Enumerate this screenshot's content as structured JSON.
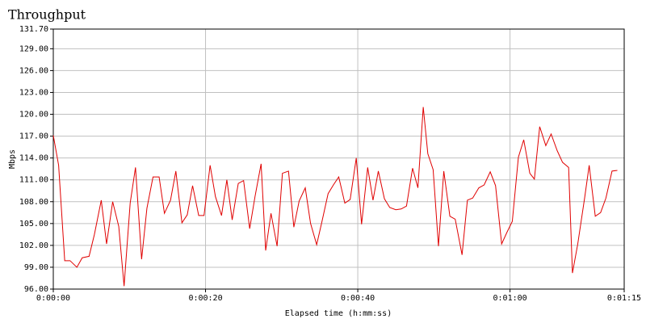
{
  "chart_data": {
    "type": "line",
    "title": "Throughput",
    "x_label": "Elapsed time (h:mm:ss)",
    "y_label": "Mbps",
    "xlim": [
      0,
      75
    ],
    "ylim": [
      96,
      131.7
    ],
    "grid": true,
    "xticks": [
      {
        "value": 0,
        "label": "0:00:00"
      },
      {
        "value": 20,
        "label": "0:00:20"
      },
      {
        "value": 40,
        "label": "0:00:40"
      },
      {
        "value": 60,
        "label": "0:01:00"
      },
      {
        "value": 75,
        "label": "0:01:15"
      }
    ],
    "yticks": [
      {
        "value": 96,
        "label": "96.00"
      },
      {
        "value": 99,
        "label": "99.00"
      },
      {
        "value": 102,
        "label": "102.00"
      },
      {
        "value": 105,
        "label": "105.00"
      },
      {
        "value": 108,
        "label": "108.00"
      },
      {
        "value": 111,
        "label": "111.00"
      },
      {
        "value": 114,
        "label": "114.00"
      },
      {
        "value": 117,
        "label": "117.00"
      },
      {
        "value": 120,
        "label": "120.00"
      },
      {
        "value": 123,
        "label": "123.00"
      },
      {
        "value": 126,
        "label": "126.00"
      },
      {
        "value": 129,
        "label": "129.00"
      },
      {
        "value": 131.7,
        "label": "131.70"
      }
    ],
    "x": [
      0,
      0.7,
      1.5,
      2.2,
      3.1,
      3.8,
      4.7,
      5.4,
      6.3,
      7.0,
      7.8,
      8.6,
      9.3,
      10.1,
      10.8,
      11.6,
      12.3,
      13.1,
      13.9,
      14.6,
      15.4,
      16.1,
      16.9,
      17.6,
      18.3,
      19.1,
      19.8,
      20.6,
      21.3,
      22.1,
      22.8,
      23.5,
      24.3,
      25.0,
      25.8,
      26.5,
      27.3,
      27.9,
      28.6,
      29.4,
      30.1,
      30.9,
      31.6,
      32.3,
      33.1,
      33.8,
      34.6,
      35.3,
      36.1,
      36.8,
      37.5,
      38.3,
      39.0,
      39.8,
      40.5,
      41.3,
      42.0,
      42.7,
      43.5,
      44.2,
      45.0,
      45.7,
      46.4,
      47.2,
      47.9,
      48.6,
      49.2,
      49.9,
      50.6,
      51.3,
      52.1,
      52.8,
      53.7,
      54.4,
      55.1,
      55.9,
      56.6,
      57.4,
      58.1,
      58.9,
      59.6,
      60.3,
      61.1,
      61.8,
      62.6,
      63.2,
      63.9,
      64.7,
      65.4,
      66.2,
      66.9,
      67.7,
      68.2,
      68.9,
      69.8,
      70.4,
      71.2,
      71.9,
      72.6,
      73.4,
      74.1
    ],
    "series": [
      {
        "color": "#e00000",
        "values": [
          117.1,
          113.0,
          99.9,
          99.9,
          99.0,
          100.3,
          100.5,
          103.5,
          108.2,
          102.2,
          108.0,
          104.6,
          96.4,
          107.8,
          112.7,
          100.1,
          107.1,
          111.4,
          111.4,
          106.4,
          108.2,
          112.2,
          105.1,
          106.2,
          110.2,
          106.1,
          106.1,
          113.0,
          108.7,
          106.1,
          111.0,
          105.5,
          110.5,
          110.9,
          104.3,
          108.7,
          113.2,
          101.3,
          106.4,
          101.9,
          111.9,
          112.2,
          104.5,
          108.1,
          109.9,
          105.0,
          102.1,
          105.3,
          109.1,
          110.3,
          111.4,
          107.8,
          108.3,
          114.0,
          104.9,
          112.7,
          108.2,
          112.2,
          108.4,
          107.2,
          106.9,
          107.0,
          107.4,
          112.6,
          109.9,
          121.0,
          114.6,
          112.4,
          101.9,
          112.2,
          106.0,
          105.6,
          100.7,
          108.2,
          108.5,
          109.9,
          110.3,
          112.1,
          110.2,
          102.2,
          103.8,
          105.3,
          114.1,
          116.5,
          111.9,
          111.1,
          118.3,
          115.7,
          117.3,
          115.0,
          113.4,
          112.7,
          98.2,
          102.2,
          108.5,
          113.0,
          106.0,
          106.5,
          108.5,
          112.2,
          112.3
        ]
      }
    ]
  }
}
